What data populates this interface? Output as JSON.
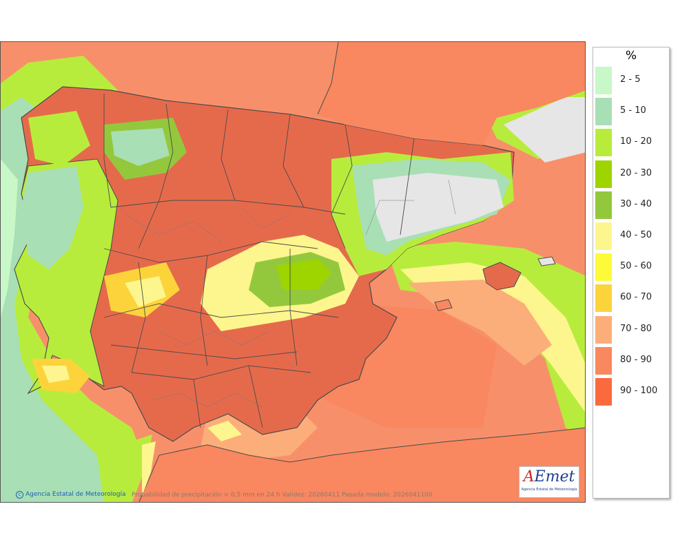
{
  "legend": {
    "unit": "%",
    "classes": [
      {
        "label": "2 - 5",
        "color": "#c8f7c8"
      },
      {
        "label": "5 - 10",
        "color": "#a9dfb5"
      },
      {
        "label": "10 - 20",
        "color": "#b8ec3c"
      },
      {
        "label": "20 - 30",
        "color": "#9ed400"
      },
      {
        "label": "30 - 40",
        "color": "#94c83c"
      },
      {
        "label": "40 - 50",
        "color": "#fdf58e"
      },
      {
        "label": "50 - 60",
        "color": "#fdfa3a"
      },
      {
        "label": "60 - 70",
        "color": "#fdd33c"
      },
      {
        "label": "70 - 80",
        "color": "#fcae7a"
      },
      {
        "label": "80 - 90",
        "color": "#f9875f"
      },
      {
        "label": "90 - 100",
        "color": "#fb6a3e"
      }
    ]
  },
  "footer": {
    "credit": "Agencia Estatal de Meteorología",
    "caption": "Probabilidad de precipitación > 0,5 mm en 24 h Validez: 20260411 Pasada modelo: 2026041100"
  },
  "logo": {
    "word_a": "A",
    "word_rest": "Emet",
    "subtitle": "Agencia Estatal de Meteorología"
  },
  "colors": {
    "sea_main": "#f7906a",
    "land_main": "#e56a4c",
    "no_rain": "#e6e6e6",
    "border": "#4a4a4a"
  }
}
